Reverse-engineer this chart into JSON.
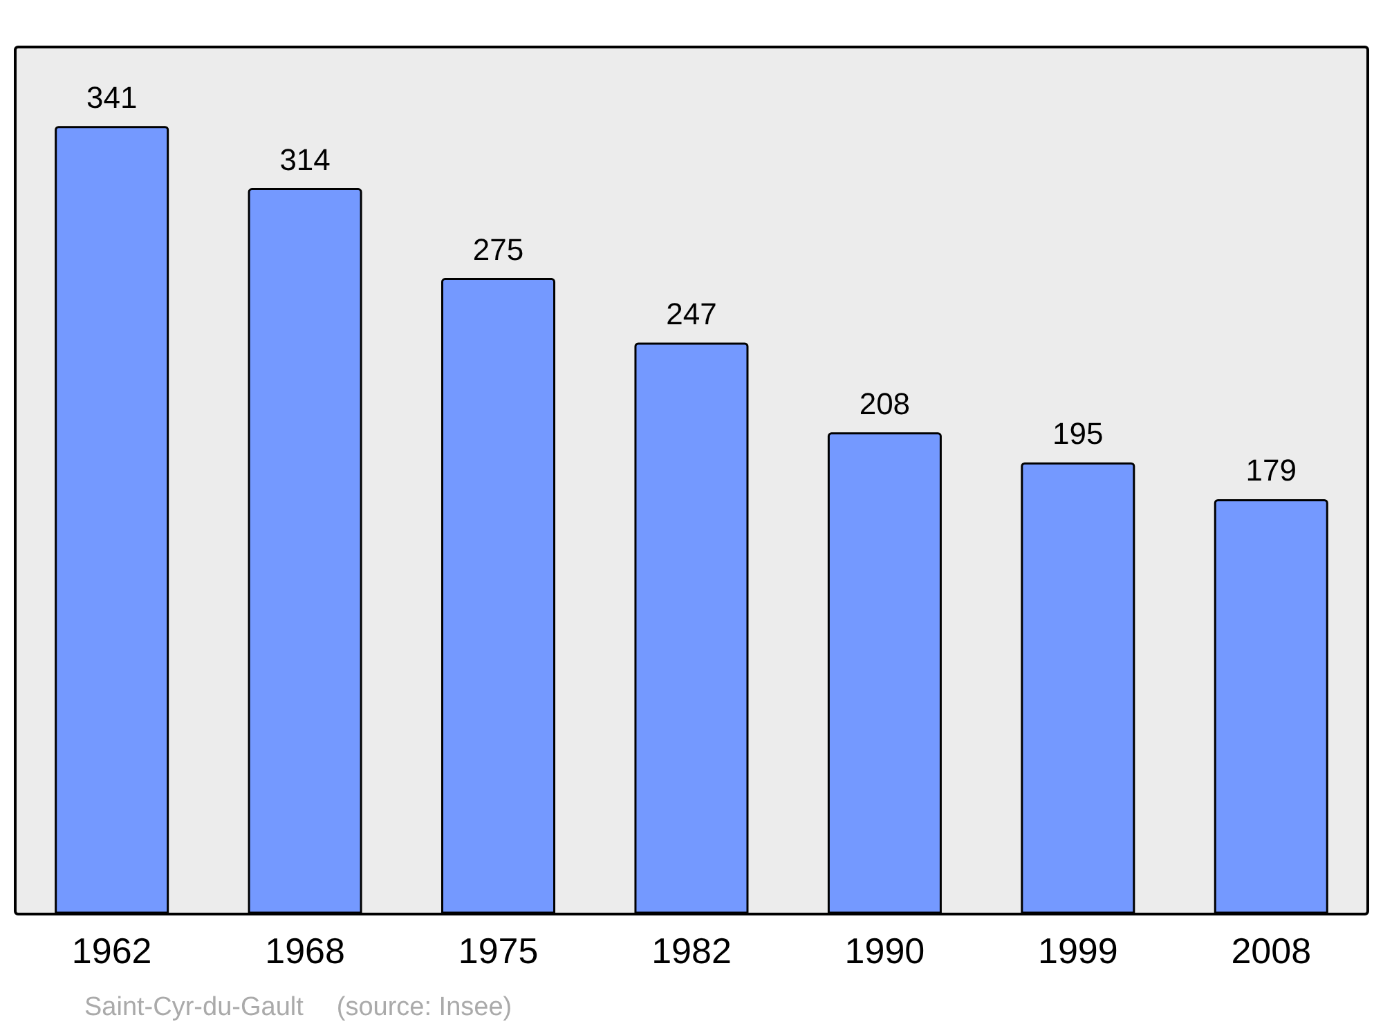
{
  "chart_data": {
    "type": "bar",
    "categories": [
      "1962",
      "1968",
      "1975",
      "1982",
      "1990",
      "1999",
      "2008"
    ],
    "values": [
      341,
      314,
      275,
      247,
      208,
      195,
      179
    ],
    "color": "#7499ff",
    "data_labels": true,
    "annotations": [
      "Saint-Cyr-du-Gault",
      "(source: Insee)"
    ]
  }
}
